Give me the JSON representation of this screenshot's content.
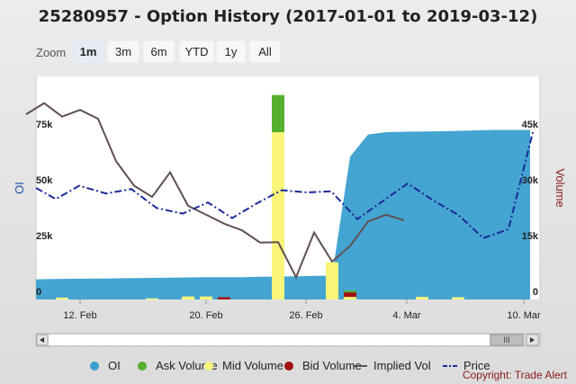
{
  "title": "25280957 - Option History (2017-01-01 to 2019-03-12)",
  "zoom": {
    "label": "Zoom",
    "buttons": [
      "1m",
      "3m",
      "6m",
      "YTD",
      "1y",
      "All"
    ],
    "selected": "1m"
  },
  "colors": {
    "oi": "#3a9fd0",
    "ask_volume": "#55b030",
    "mid_volume": "#f8f57a",
    "bid_volume": "#a01010",
    "implied_vol": "#605050",
    "price": "#1a2a9a"
  },
  "chart_data": {
    "type": "area",
    "x_ticks": [
      "12. Feb",
      "20. Feb",
      "26. Feb",
      "4. Mar",
      "10. Mar"
    ],
    "left_axis": {
      "title": "OI",
      "ticks": [
        "0",
        "25k",
        "50k",
        "75k"
      ],
      "range": [
        0,
        100000
      ]
    },
    "right_axis": {
      "title": "Volume",
      "ticks": [
        "0",
        "15k",
        "30k",
        "45k"
      ],
      "range": [
        0,
        60000
      ]
    },
    "days": [
      -2,
      -1,
      0,
      1,
      2,
      3,
      4,
      5,
      6,
      7,
      8,
      9,
      10,
      11,
      12,
      13,
      14,
      15,
      16,
      17,
      18,
      19,
      20,
      21,
      22,
      23,
      24,
      25,
      26
    ],
    "series": [
      {
        "name": "OI",
        "kind": "area",
        "values": [
          9000,
          9100,
          9200,
          9300,
          9400,
          9500,
          9600,
          9700,
          9800,
          9900,
          10000,
          10000,
          10000,
          10200,
          10300,
          10400,
          10600,
          10700,
          64000,
          74000,
          75000,
          75200,
          75300,
          75400,
          75600,
          75800,
          76000,
          76000,
          76000
        ]
      },
      {
        "name": "Implied Vol",
        "kind": "line",
        "values": [
          83000,
          88000,
          82000,
          85000,
          81000,
          62000,
          51000,
          46000,
          57000,
          42000,
          38000,
          34000,
          31000,
          25500,
          25700,
          10000,
          30000,
          17000,
          24000,
          35000,
          38000,
          35500
        ]
      },
      {
        "name": "Price",
        "kind": "line",
        "values": [
          50000,
          45000,
          51000,
          47500,
          49500,
          41000,
          38500,
          43500,
          36500,
          43000,
          49000,
          48000,
          48500,
          36000,
          44000,
          52000,
          44500,
          38000,
          27500,
          31500,
          75000
        ]
      },
      {
        "name": "Mid Volume",
        "kind": "bar",
        "values": [
          0,
          0,
          500,
          0,
          0,
          0,
          0,
          300,
          0,
          800,
          800,
          0,
          0,
          0,
          45000,
          0,
          0,
          10000,
          700,
          0,
          0,
          0,
          700,
          0,
          600,
          0,
          0,
          0,
          0
        ]
      },
      {
        "name": "Ask Volume",
        "kind": "bar",
        "values": [
          0,
          0,
          0,
          0,
          0,
          0,
          0,
          0,
          0,
          0,
          0,
          0,
          0,
          0,
          10000,
          0,
          0,
          0,
          500,
          0,
          0,
          0,
          0,
          0,
          0,
          0,
          0,
          0,
          0
        ]
      },
      {
        "name": "Bid Volume",
        "kind": "bar",
        "values": [
          0,
          0,
          0,
          0,
          0,
          0,
          0,
          0,
          0,
          0,
          0,
          600,
          0,
          0,
          0,
          0,
          0,
          0,
          1200,
          0,
          0,
          0,
          0,
          0,
          0,
          0,
          0,
          0,
          0
        ]
      }
    ]
  },
  "legend": {
    "items": [
      {
        "label": "OI",
        "color": "#3a9fd0",
        "kind": "dot"
      },
      {
        "label": "Ask Volume",
        "color": "#55b030",
        "kind": "dot"
      },
      {
        "label": "Mid Volume",
        "color": "#f8f57a",
        "kind": "dot"
      },
      {
        "label": "Bid Volume",
        "color": "#a01010",
        "kind": "dot"
      },
      {
        "label": "Implied Vol",
        "color": "#605050",
        "kind": "line"
      },
      {
        "label": "Price",
        "color": "#1a2a9a",
        "kind": "dash"
      }
    ]
  },
  "navigator": {
    "thumb_label": "III"
  },
  "credit": "Copyright: Trade Alert"
}
